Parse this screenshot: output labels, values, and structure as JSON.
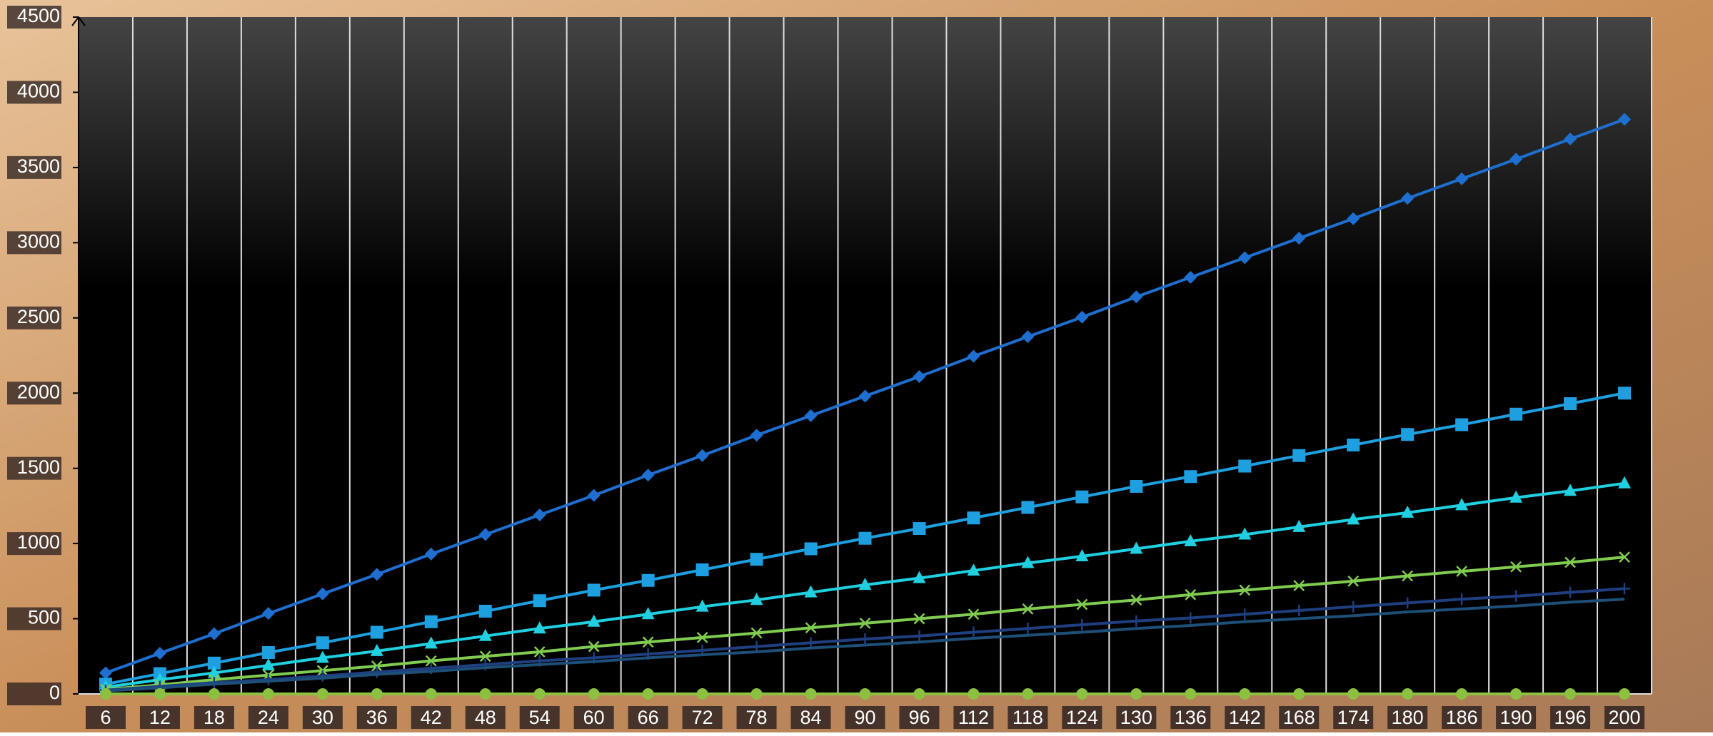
{
  "chart_data": {
    "type": "line",
    "categories": [
      6,
      12,
      18,
      24,
      30,
      36,
      42,
      48,
      54,
      60,
      66,
      72,
      78,
      84,
      90,
      96,
      112,
      118,
      124,
      130,
      136,
      142,
      168,
      174,
      180,
      186,
      190,
      196,
      200
    ],
    "ylim": [
      0,
      4500
    ],
    "yticks": [
      0,
      500,
      1000,
      1500,
      2000,
      2500,
      3000,
      3500,
      4000,
      4500
    ],
    "grid": true,
    "series": [
      {
        "color": "#1e6fd0",
        "marker": "diamond",
        "values": [
          140,
          270,
          400,
          535,
          665,
          795,
          930,
          1060,
          1190,
          1320,
          1455,
          1585,
          1720,
          1850,
          1980,
          2110,
          2245,
          2375,
          2505,
          2640,
          2770,
          2900,
          3030,
          3160,
          3295,
          3425,
          3555,
          3690,
          3820
        ]
      },
      {
        "color": "#1e9fe0",
        "marker": "square",
        "values": [
          65,
          135,
          205,
          275,
          340,
          410,
          480,
          550,
          620,
          690,
          755,
          825,
          895,
          965,
          1035,
          1100,
          1170,
          1240,
          1310,
          1380,
          1445,
          1515,
          1585,
          1655,
          1725,
          1790,
          1860,
          1930,
          2000
        ]
      },
      {
        "color": "#20d0e0",
        "marker": "triangle",
        "values": [
          45,
          95,
          140,
          190,
          240,
          285,
          335,
          385,
          435,
          480,
          530,
          580,
          625,
          675,
          725,
          770,
          820,
          870,
          915,
          965,
          1015,
          1060,
          1110,
          1160,
          1205,
          1255,
          1305,
          1350,
          1400
        ]
      },
      {
        "color": "#80cc50",
        "marker": "x",
        "values": [
          30,
          60,
          95,
          125,
          155,
          185,
          220,
          250,
          280,
          315,
          345,
          375,
          405,
          440,
          470,
          500,
          530,
          565,
          595,
          625,
          660,
          690,
          720,
          750,
          785,
          815,
          845,
          875,
          910
        ]
      },
      {
        "color": "#1f3f80",
        "marker": "plus",
        "values": [
          25,
          50,
          75,
          95,
          120,
          145,
          170,
          195,
          220,
          240,
          265,
          290,
          315,
          340,
          365,
          385,
          410,
          435,
          460,
          485,
          505,
          530,
          555,
          580,
          605,
          630,
          650,
          675,
          700
        ]
      },
      {
        "color": "#1d4f78",
        "marker": "none",
        "values": [
          20,
          40,
          65,
          85,
          105,
          130,
          150,
          175,
          195,
          215,
          240,
          260,
          280,
          305,
          325,
          345,
          370,
          390,
          410,
          435,
          455,
          480,
          500,
          520,
          545,
          565,
          585,
          610,
          630
        ]
      },
      {
        "color": "#8cc040",
        "marker": "circle",
        "values": [
          0,
          0,
          0,
          0,
          0,
          0,
          0,
          0,
          0,
          0,
          0,
          0,
          0,
          0,
          0,
          0,
          0,
          0,
          0,
          0,
          0,
          0,
          0,
          0,
          0,
          0,
          0,
          0,
          0
        ]
      }
    ]
  }
}
